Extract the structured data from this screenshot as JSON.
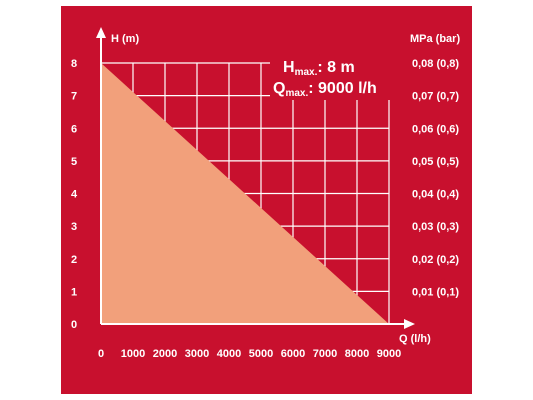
{
  "chart_data": {
    "type": "area",
    "title": "",
    "xlabel": "Q (l/h)",
    "ylabel": "H (m)",
    "y2label": "MPa (bar)",
    "x_ticks": [
      "0",
      "1000",
      "2000",
      "3000",
      "4000",
      "5000",
      "6000",
      "7000",
      "8000",
      "9000"
    ],
    "y_ticks": [
      "0",
      "1",
      "2",
      "3",
      "4",
      "5",
      "6",
      "7",
      "8"
    ],
    "y2_ticks": [
      "0,01 (0,1)",
      "0,02 (0,2)",
      "0,03 (0,3)",
      "0,04 (0,4)",
      "0,05 (0,5)",
      "0,06 (0,6)",
      "0,07 (0,7)",
      "0,08 (0,8)"
    ],
    "xlim": [
      0,
      9000
    ],
    "ylim": [
      0,
      8
    ],
    "grid": true,
    "series": [
      {
        "x": [
          0,
          9000
        ],
        "y": [
          8,
          0
        ]
      }
    ],
    "annotations": {
      "hmax_symbol": "H",
      "hmax_sub": "max.",
      "hmax_value": ": 8 m",
      "qmax_symbol": "Q",
      "qmax_sub": "max.",
      "qmax_value": ": 9000 l/h"
    }
  },
  "colors": {
    "background": "#c8102e",
    "fill": "#f2a07b",
    "grid": "#ffffff",
    "text": "#ffffff"
  }
}
